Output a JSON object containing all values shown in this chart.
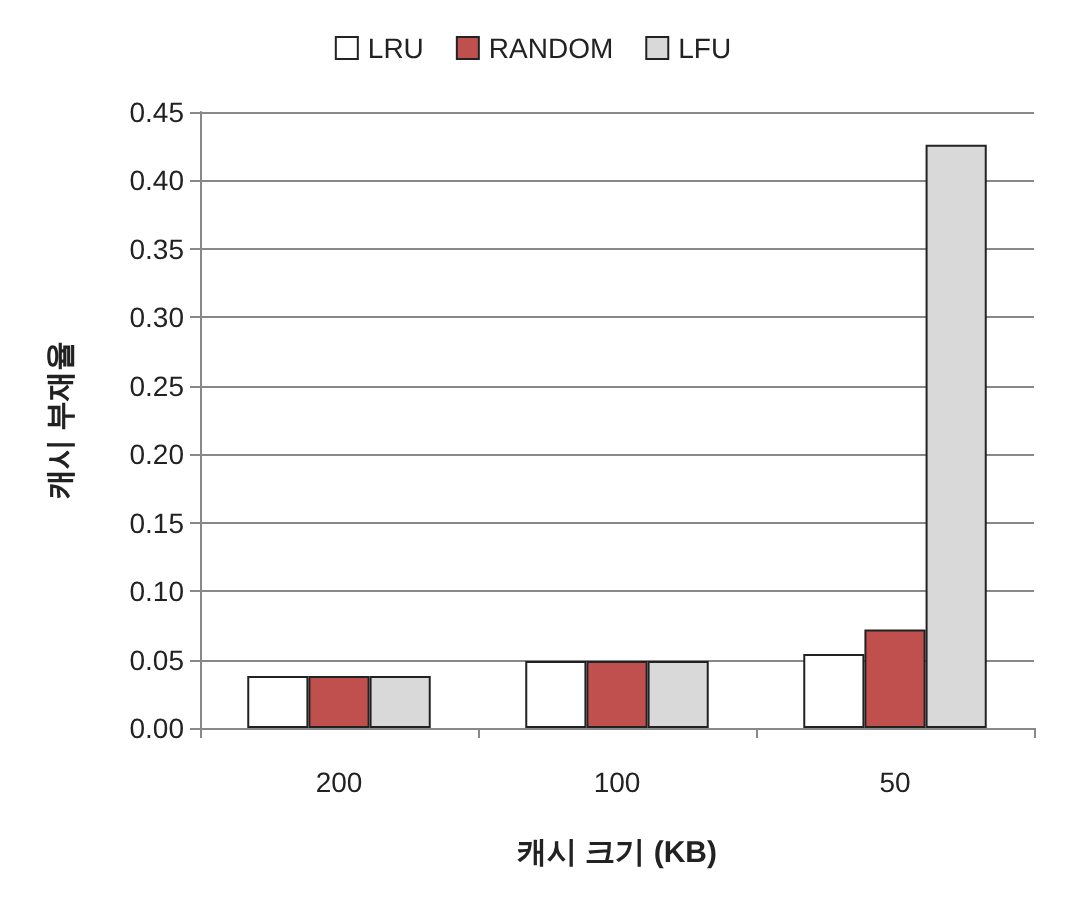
{
  "chart_data": {
    "type": "bar",
    "xlabel": "캐시 크기 (KB)",
    "ylabel": "캐시 부재율",
    "categories": [
      "200",
      "100",
      "50"
    ],
    "series": [
      {
        "name": "LRU",
        "color": "#ffffff",
        "values": [
          0.038,
          0.049,
          0.054
        ]
      },
      {
        "name": "RANDOM",
        "color": "#c0504d",
        "values": [
          0.038,
          0.049,
          0.072
        ]
      },
      {
        "name": "LFU",
        "color": "#d9d9d9",
        "values": [
          0.038,
          0.049,
          0.426
        ]
      }
    ],
    "ylim": [
      0,
      0.45
    ],
    "yticks": [
      {
        "value": 0,
        "label": "0.00"
      },
      0.05,
      {
        "value": 0.1,
        "label": "0.10"
      },
      0.15,
      {
        "value": 0.2,
        "label": "0.20"
      },
      0.25,
      {
        "value": 0.3,
        "label": "0.30"
      },
      0.35,
      {
        "value": 0.4,
        "label": "0.40"
      },
      0.45
    ],
    "grid": "y",
    "legend": "top"
  }
}
